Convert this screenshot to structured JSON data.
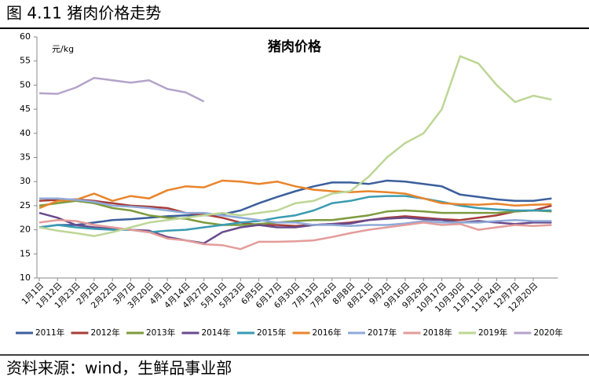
{
  "header": "图 4.11 猪肉价格走势",
  "source": "资料来源：wind，生鲜品事业部",
  "chart_data": {
    "type": "line",
    "title": "猪肉价格",
    "y_label": "元/kg",
    "categories": [
      "1月1日",
      "1月12日",
      "1月23日",
      "2月2日",
      "2月22日",
      "3月7日",
      "3月20日",
      "4月1日",
      "4月14日",
      "4月27日",
      "5月10日",
      "5月23日",
      "6月5日",
      "6月17日",
      "6月30日",
      "7月13日",
      "7月26日",
      "8月8日",
      "8月21日",
      "9月2日",
      "9月16日",
      "9月29日",
      "10月17日",
      "10月30日",
      "11月11日",
      "11月24日",
      "12月7日",
      "12月20日",
      null
    ],
    "ylim": [
      10,
      60
    ],
    "yticks": [
      10,
      15,
      20,
      25,
      30,
      35,
      40,
      45,
      50,
      55,
      60
    ],
    "grid": false,
    "legend": "bottom",
    "series": [
      {
        "name": "2011年",
        "color": "#3b5f9c",
        "values": [
          20.5,
          21,
          21,
          21.5,
          22,
          22.2,
          22.5,
          22.8,
          23,
          23,
          23.2,
          24,
          25.5,
          26.8,
          28,
          29,
          29.8,
          29.8,
          29.5,
          30.2,
          30,
          29.5,
          29,
          27.3,
          26.8,
          26.3,
          26,
          26,
          26.5
        ]
      },
      {
        "name": "2012年",
        "color": "#a63d3a",
        "values": [
          26,
          26.2,
          26.3,
          26,
          25.5,
          25,
          24.8,
          24.5,
          23.5,
          23.2,
          22.5,
          21.5,
          21,
          21,
          20.8,
          21,
          21.2,
          21.5,
          22,
          22.5,
          22.8,
          22.5,
          22.2,
          22,
          22.5,
          23,
          23.8,
          24,
          25
        ]
      },
      {
        "name": "2013年",
        "color": "#7d9a3d",
        "values": [
          25,
          25.5,
          26,
          25.5,
          24.5,
          24,
          23,
          22.5,
          22.3,
          21.5,
          21,
          21,
          21.2,
          21.5,
          21.8,
          22,
          22,
          22.5,
          23,
          23.8,
          24,
          23.8,
          23.5,
          23.5,
          23.5,
          23.5,
          23.8,
          24,
          23.8
        ]
      },
      {
        "name": "2014年",
        "color": "#694a8c",
        "values": [
          23.5,
          22.5,
          21,
          20.5,
          20.2,
          20,
          19.8,
          18.5,
          17.8,
          17.2,
          19.5,
          20.5,
          21,
          20.5,
          20.5,
          21,
          21.2,
          21.3,
          22,
          22.3,
          22.5,
          22.2,
          22,
          21.5,
          21.8,
          21.5,
          21.2,
          21.5,
          21.5
        ]
      },
      {
        "name": "2015年",
        "color": "#3a9bb2",
        "values": [
          20.5,
          21,
          20.5,
          20.2,
          20,
          20,
          19.5,
          19.8,
          20,
          20.5,
          21,
          21.5,
          21.8,
          22.5,
          23,
          24,
          25.5,
          26,
          26.8,
          27,
          27,
          26.5,
          25.8,
          25,
          24.5,
          24.2,
          24,
          24,
          24
        ]
      },
      {
        "name": "2016年",
        "color": "#e8842b",
        "values": [
          24.5,
          26,
          26.2,
          27.5,
          26,
          27,
          26.5,
          28.2,
          29,
          28.8,
          30.2,
          30,
          29.5,
          30,
          29,
          28.3,
          28,
          27.8,
          28,
          27.8,
          27.5,
          26.5,
          25.5,
          25.3,
          25.2,
          25.4,
          25,
          25.2,
          25.3
        ]
      },
      {
        "name": "2017年",
        "color": "#8faad8",
        "values": [
          26.5,
          26.5,
          26.2,
          25.8,
          25,
          24.8,
          24.5,
          24,
          23.5,
          23.5,
          23,
          22.5,
          22,
          21.5,
          21.5,
          21,
          21,
          20.8,
          21,
          21,
          21.3,
          21.8,
          21.5,
          21.5,
          21.5,
          21.8,
          22,
          21.8,
          21.8
        ]
      },
      {
        "name": "2018年",
        "color": "#e39c99",
        "values": [
          21.5,
          22,
          21.8,
          21,
          20.5,
          20,
          19.5,
          18.2,
          17.8,
          17,
          16.8,
          16,
          17.5,
          17.5,
          17.6,
          17.8,
          18.5,
          19.3,
          20,
          20.5,
          21,
          21.5,
          21,
          21.2,
          20,
          20.5,
          21,
          20.8,
          21
        ]
      },
      {
        "name": "2019年",
        "color": "#bdd696",
        "values": [
          20.5,
          19.8,
          19.3,
          18.7,
          19.5,
          20.5,
          21.5,
          22,
          22.5,
          23,
          23.5,
          23,
          23.5,
          24,
          25.5,
          26,
          27.5,
          28,
          31,
          35,
          38,
          40,
          45,
          56,
          54.5,
          50,
          46.5,
          47.8,
          47
        ]
      },
      {
        "name": "2020年",
        "color": "#b4a3ca",
        "values": [
          48.3,
          48.2,
          49.5,
          51.5,
          51,
          50.5,
          51,
          49.2,
          48.5,
          46.6,
          null,
          null,
          null,
          null,
          null,
          null,
          null,
          null,
          null,
          null,
          null,
          null,
          null,
          null,
          null,
          null,
          null,
          null,
          null
        ]
      }
    ]
  }
}
